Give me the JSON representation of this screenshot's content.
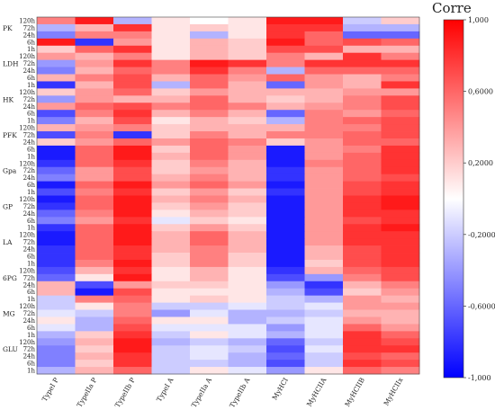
{
  "chart_data": {
    "type": "heatmap",
    "title": "",
    "xlabel": "",
    "ylabel": "",
    "x_categories": [
      "TypeI P",
      "TypeIIa P",
      "TypeIIb P",
      "TypeI A",
      "TypeIIa A",
      "TypeIIb A",
      "MyHCI",
      "MyHCIIA",
      "MyHCIIB",
      "MyHCIIx"
    ],
    "time_labels": [
      "120h",
      "72h",
      "24h",
      "6h",
      "1h"
    ],
    "groups": [
      "PK",
      "LDH",
      "HK",
      "PFK",
      "Gpa",
      "GP",
      "LA",
      "6PG",
      "MG",
      "GLU"
    ],
    "y_categories": [
      "PK 120h",
      "PK 72h",
      "PK 24h",
      "PK 6h",
      "PK 1h",
      "LDH 120h",
      "LDH 72h",
      "LDH 24h",
      "LDH 6h",
      "LDH 1h",
      "HK 120h",
      "HK 72h",
      "HK 24h",
      "HK 6h",
      "HK 1h",
      "PFK 120h",
      "PFK 72h",
      "PFK 24h",
      "PFK 6h",
      "PFK 1h",
      "Gpa 120h",
      "Gpa 72h",
      "Gpa 24h",
      "Gpa 6h",
      "Gpa 1h",
      "GP 120h",
      "GP 72h",
      "GP 24h",
      "GP 6h",
      "GP 1h",
      "LA 120h",
      "LA 72h",
      "LA 24h",
      "LA 6h",
      "LA 1h",
      "6PG 120h",
      "6PG 72h",
      "6PG 24h",
      "6PG 6h",
      "6PG 1h",
      "MG 120h",
      "MG 72h",
      "MG 24h",
      "MG 6h",
      "MG 1h",
      "GLU 120h",
      "GLU 72h",
      "GLU 24h",
      "GLU 6h",
      "GLU 1h"
    ],
    "values": [
      [
        0.5,
        0.9,
        -0.3,
        0.1,
        0.0,
        0.1,
        0.9,
        0.9,
        -0.2,
        0.2
      ],
      [
        -0.3,
        0.3,
        0.8,
        0.1,
        0.2,
        0.1,
        0.8,
        0.8,
        -0.3,
        -0.3
      ],
      [
        -0.5,
        0.5,
        0.5,
        0.1,
        -0.3,
        0.1,
        0.8,
        0.6,
        -0.6,
        -0.6
      ],
      [
        0.9,
        -0.8,
        0.4,
        0.1,
        0.3,
        0.2,
        0.9,
        0.6,
        0.7,
        0.6
      ],
      [
        0.2,
        0.6,
        0.8,
        0.1,
        0.3,
        0.2,
        0.7,
        0.7,
        0.3,
        0.3
      ],
      [
        0.4,
        0.3,
        0.5,
        0.1,
        0.3,
        0.2,
        0.5,
        0.3,
        0.8,
        0.5
      ],
      [
        -0.4,
        0.4,
        0.8,
        0.5,
        0.9,
        0.8,
        0.5,
        0.8,
        0.8,
        0.8
      ],
      [
        -0.5,
        0.3,
        0.6,
        0.5,
        0.8,
        0.5,
        -0.3,
        0.6,
        0.6,
        0.6
      ],
      [
        0.3,
        0.5,
        0.7,
        0.3,
        0.6,
        0.4,
        0.6,
        0.4,
        0.3,
        0.5
      ],
      [
        -0.8,
        0.3,
        0.7,
        -0.3,
        0.6,
        0.3,
        -0.6,
        0.4,
        0.3,
        0.8
      ],
      [
        0.2,
        0.4,
        0.6,
        0.2,
        0.4,
        0.3,
        0.3,
        0.3,
        0.4,
        0.4
      ],
      [
        -0.4,
        0.4,
        0.3,
        0.3,
        0.6,
        0.3,
        0.2,
        0.3,
        0.5,
        0.7
      ],
      [
        0.4,
        0.6,
        0.7,
        0.5,
        0.6,
        0.5,
        0.3,
        0.4,
        0.5,
        0.7
      ],
      [
        -0.7,
        0.5,
        0.8,
        0.3,
        0.5,
        0.3,
        -0.6,
        0.5,
        0.4,
        0.6
      ],
      [
        -0.5,
        0.3,
        0.7,
        0.1,
        0.3,
        0.2,
        -0.3,
        0.5,
        0.6,
        0.7
      ],
      [
        0.3,
        0.4,
        0.5,
        0.2,
        0.3,
        0.3,
        0.3,
        0.5,
        0.5,
        0.7
      ],
      [
        -0.7,
        0.5,
        -0.8,
        0.2,
        0.5,
        0.3,
        0.5,
        0.5,
        0.6,
        0.7
      ],
      [
        0.2,
        0.4,
        0.6,
        0.4,
        0.6,
        0.5,
        0.2,
        0.4,
        0.6,
        0.6
      ],
      [
        -0.9,
        0.6,
        0.9,
        0.2,
        0.6,
        0.4,
        -0.9,
        0.4,
        0.5,
        0.8
      ],
      [
        -0.9,
        0.6,
        0.9,
        0.3,
        0.6,
        0.4,
        -0.9,
        0.4,
        0.6,
        0.8
      ],
      [
        -0.8,
        0.6,
        0.8,
        0.2,
        0.5,
        0.3,
        -0.9,
        0.5,
        0.6,
        0.8
      ],
      [
        -0.6,
        0.4,
        0.7,
        0.2,
        0.4,
        0.3,
        -0.8,
        0.4,
        0.6,
        0.8
      ],
      [
        -0.5,
        0.4,
        0.7,
        0.3,
        0.5,
        0.3,
        -0.8,
        0.4,
        0.6,
        0.7
      ],
      [
        -0.9,
        0.6,
        0.9,
        0.4,
        0.6,
        0.4,
        -0.9,
        0.4,
        0.7,
        0.8
      ],
      [
        -0.7,
        0.5,
        0.8,
        0.2,
        0.4,
        0.2,
        -0.8,
        0.4,
        0.7,
        0.8
      ],
      [
        -0.9,
        0.6,
        0.9,
        0.3,
        0.5,
        0.3,
        -0.9,
        0.4,
        0.8,
        0.9
      ],
      [
        -0.8,
        0.6,
        0.9,
        0.2,
        0.4,
        0.2,
        -0.9,
        0.4,
        0.8,
        0.9
      ],
      [
        -0.6,
        0.5,
        0.9,
        0.1,
        0.3,
        0.2,
        -0.9,
        0.4,
        0.8,
        0.8
      ],
      [
        -0.5,
        0.4,
        0.8,
        -0.1,
        0.2,
        0.1,
        -0.9,
        0.4,
        0.7,
        0.8
      ],
      [
        -0.8,
        0.6,
        0.9,
        0.2,
        0.4,
        0.2,
        -0.9,
        0.4,
        0.8,
        0.9
      ],
      [
        -0.9,
        0.6,
        0.9,
        0.3,
        0.6,
        0.3,
        -0.9,
        0.4,
        0.8,
        0.8
      ],
      [
        -0.9,
        0.6,
        0.9,
        0.3,
        0.6,
        0.3,
        -0.9,
        0.4,
        0.8,
        0.8
      ],
      [
        -0.8,
        0.6,
        0.8,
        0.3,
        0.5,
        0.3,
        -0.9,
        0.3,
        0.7,
        0.8
      ],
      [
        -0.8,
        0.6,
        0.8,
        0.2,
        0.5,
        0.2,
        -0.9,
        0.3,
        0.7,
        0.8
      ],
      [
        -0.8,
        0.5,
        0.9,
        0.2,
        0.5,
        0.2,
        -0.9,
        0.2,
        0.7,
        0.8
      ],
      [
        -0.7,
        0.3,
        0.8,
        0.1,
        0.3,
        0.1,
        -0.8,
        0.3,
        0.6,
        0.7
      ],
      [
        -0.6,
        0.1,
        0.9,
        0.1,
        0.3,
        0.1,
        -0.7,
        -0.4,
        0.5,
        0.7
      ],
      [
        0.3,
        -0.7,
        0.4,
        0.2,
        0.2,
        0.1,
        -0.4,
        -0.8,
        0.3,
        0.5
      ],
      [
        0.3,
        -0.9,
        0.7,
        0.1,
        0.1,
        0.1,
        -0.3,
        -0.7,
        0.2,
        0.4
      ],
      [
        -0.2,
        0.5,
        0.6,
        0.1,
        0.2,
        0.1,
        -0.2,
        -0.3,
        0.4,
        0.3
      ],
      [
        -0.2,
        0.1,
        0.5,
        -0.2,
        -0.2,
        -0.1,
        -0.2,
        -0.1,
        0.4,
        0.4
      ],
      [
        -0.1,
        -0.2,
        0.5,
        -0.4,
        -0.1,
        -0.3,
        -0.3,
        -0.2,
        0.3,
        0.3
      ],
      [
        0.1,
        -0.3,
        0.6,
        0.1,
        0.1,
        -0.3,
        -0.2,
        -0.1,
        0.4,
        0.3
      ],
      [
        -0.1,
        -0.3,
        0.7,
        -0.1,
        -0.1,
        -0.1,
        -0.4,
        -0.1,
        0.6,
        0.4
      ],
      [
        -0.3,
        0.2,
        0.8,
        -0.2,
        0.1,
        -0.1,
        -0.3,
        -0.1,
        0.8,
        0.6
      ],
      [
        -0.4,
        0.3,
        0.9,
        -0.3,
        -0.2,
        -0.3,
        -0.6,
        -0.2,
        0.8,
        0.7
      ],
      [
        -0.5,
        0.2,
        0.9,
        -0.2,
        -0.1,
        -0.2,
        -0.7,
        -0.1,
        0.8,
        0.8
      ],
      [
        -0.5,
        0.3,
        0.8,
        -0.2,
        -0.1,
        -0.3,
        -0.6,
        -0.2,
        0.7,
        0.6
      ],
      [
        -0.5,
        0.2,
        0.8,
        -0.2,
        -0.2,
        -0.3,
        -0.7,
        -0.2,
        0.8,
        0.7
      ],
      [
        -0.3,
        0.3,
        0.6,
        -0.2,
        0.1,
        -0.1,
        -0.4,
        0.1,
        0.6,
        0.5
      ]
    ],
    "colorbar": {
      "title": "Corre",
      "min": -1,
      "max": 1,
      "colors": {
        "low": "#0000ff",
        "mid": "#ffffff",
        "high": "#ff0000"
      },
      "tick_values": [
        1,
        0.6,
        0.2,
        -0.2,
        -0.6,
        -1
      ],
      "tick_labels": [
        "1,000",
        "0,6000",
        "0,2000",
        "-0,2000",
        "-0,6000",
        "-1,000"
      ]
    }
  }
}
